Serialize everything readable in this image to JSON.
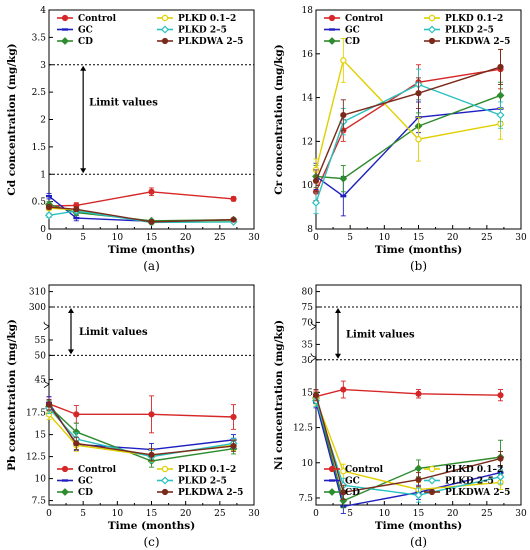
{
  "legend_order": [
    "Control",
    "GC",
    "CD",
    "PLKD 0.1–2",
    "PLKD 2–5",
    "PLKDWA 2–5"
  ],
  "series_colors": {
    "Control": "#d62728",
    "GC": "#1f1fbf",
    "CD": "#2e8b2e",
    "PLKD 0.1–2": "#e0d000",
    "PLKD 2–5": "#2bc0c0",
    "PLKDWA 2–5": "#7a2a1a"
  },
  "chart_data": [
    {
      "type": "line",
      "panel_label": "(a)",
      "xlabel": "Time (months)",
      "ylabel": "Cd concentration (mg/kg)",
      "xlim": [
        0,
        30
      ],
      "ylim": [
        0,
        4
      ],
      "xticks": [
        0,
        5,
        10,
        15,
        20,
        25,
        30
      ],
      "yticks": [
        0,
        0.5,
        1,
        1.5,
        2,
        2.5,
        3,
        3.5,
        4
      ],
      "ytick_labels": [
        "0",
        "0.5",
        "1",
        "1.5",
        "2",
        "2.5",
        "3",
        "3.5",
        "4"
      ],
      "x": [
        0,
        4,
        15,
        27
      ],
      "limit_lines": [
        1,
        3
      ],
      "annotation": "Limit values",
      "series": [
        {
          "name": "Control",
          "values": [
            0.42,
            0.43,
            0.68,
            0.55
          ],
          "err": [
            0.05,
            0.05,
            0.07,
            0.04
          ]
        },
        {
          "name": "GC",
          "values": [
            0.6,
            0.2,
            0.14,
            0.16
          ],
          "err": [
            0.05,
            0.05,
            0.02,
            0.02
          ]
        },
        {
          "name": "CD",
          "values": [
            0.45,
            0.3,
            0.15,
            0.17
          ],
          "err": [
            0.05,
            0.05,
            0.02,
            0.02
          ]
        },
        {
          "name": "PLKD 0.1–2",
          "values": [
            0.38,
            0.35,
            0.12,
            0.14
          ],
          "err": [
            0.04,
            0.04,
            0.02,
            0.02
          ]
        },
        {
          "name": "PLKD 2–5",
          "values": [
            0.25,
            0.33,
            0.12,
            0.13
          ],
          "err": [
            0.04,
            0.04,
            0.02,
            0.02
          ]
        },
        {
          "name": "PLKDWA 2–5",
          "values": [
            0.4,
            0.36,
            0.13,
            0.17
          ],
          "err": [
            0.04,
            0.04,
            0.02,
            0.02
          ]
        }
      ]
    },
    {
      "type": "line",
      "panel_label": "(b)",
      "xlabel": "Time (months)",
      "ylabel": "Cr concentration (mg/kg)",
      "xlim": [
        0,
        30
      ],
      "ylim": [
        8,
        18
      ],
      "xticks": [
        0,
        5,
        10,
        15,
        20,
        25,
        30
      ],
      "yticks": [
        8,
        10,
        12,
        14,
        16,
        18
      ],
      "ytick_labels": [
        "8",
        "10",
        "12",
        "14",
        "16",
        "18"
      ],
      "x": [
        0,
        4,
        15,
        27
      ],
      "series": [
        {
          "name": "Control",
          "values": [
            9.7,
            12.5,
            14.7,
            15.3
          ],
          "err": [
            0.4,
            0.5,
            0.8,
            0.9
          ]
        },
        {
          "name": "GC",
          "values": [
            10.4,
            9.5,
            13.1,
            13.5
          ],
          "err": [
            0.6,
            0.9,
            0.7,
            0.6
          ]
        },
        {
          "name": "CD",
          "values": [
            10.4,
            10.3,
            12.7,
            14.1
          ],
          "err": [
            0.5,
            0.6,
            0.6,
            0.6
          ]
        },
        {
          "name": "PLKD 0.1–2",
          "values": [
            10.7,
            15.7,
            12.1,
            12.8
          ],
          "err": [
            0.5,
            1.0,
            1.0,
            0.7
          ]
        },
        {
          "name": "PLKD 2–5",
          "values": [
            9.2,
            12.9,
            14.6,
            13.2
          ],
          "err": [
            0.5,
            0.6,
            0.7,
            0.6
          ]
        },
        {
          "name": "PLKDWA 2–5",
          "values": [
            10.2,
            13.2,
            14.2,
            15.4
          ],
          "err": [
            0.5,
            0.7,
            0.7,
            0.8
          ]
        }
      ]
    },
    {
      "type": "line",
      "panel_label": "(c)",
      "xlabel": "Time (months)",
      "ylabel": "Pb concentration (mg/kg)",
      "xlim": [
        0,
        30
      ],
      "ylim": [
        7,
        20
      ],
      "xticks": [
        0,
        5,
        10,
        15,
        20,
        25,
        30
      ],
      "yticks": [
        7.5,
        10,
        12.5,
        15,
        17.5
      ],
      "ytick_labels": [
        "7.5",
        "10",
        "12.5",
        "15",
        "17.5"
      ],
      "upper_ticks": [
        {
          "label": "310",
          "frac": 0.03
        },
        {
          "label": "300",
          "frac": 0.1
        },
        {
          "label": "55",
          "frac": 0.25
        },
        {
          "label": "50",
          "frac": 0.32
        },
        {
          "label": "45",
          "frac": 0.43
        }
      ],
      "limit_lines_upper": [
        0.1,
        0.32
      ],
      "annotation": "Limit values",
      "x": [
        0,
        4,
        15,
        27
      ],
      "series": [
        {
          "name": "Control",
          "values": [
            18.5,
            17.3,
            17.3,
            17.0
          ],
          "err": [
            0.8,
            1.0,
            2.1,
            1.4
          ]
        },
        {
          "name": "GC",
          "values": [
            18.6,
            13.9,
            13.3,
            14.4
          ],
          "err": [
            0.7,
            0.7,
            0.7,
            0.6
          ]
        },
        {
          "name": "CD",
          "values": [
            18.2,
            15.3,
            12.0,
            13.4
          ],
          "err": [
            0.7,
            1.0,
            0.7,
            0.6
          ]
        },
        {
          "name": "PLKD 0.1–2",
          "values": [
            17.3,
            13.8,
            12.6,
            13.8
          ],
          "err": [
            0.6,
            0.7,
            0.7,
            0.6
          ]
        },
        {
          "name": "PLKD 2–5",
          "values": [
            18.0,
            14.5,
            12.5,
            14.0
          ],
          "err": [
            0.6,
            0.7,
            0.7,
            0.6
          ]
        },
        {
          "name": "PLKDWA 2–5",
          "values": [
            18.4,
            14.0,
            12.7,
            13.7
          ],
          "err": [
            0.6,
            0.7,
            0.7,
            0.6
          ]
        }
      ]
    },
    {
      "type": "line",
      "panel_label": "(d)",
      "xlabel": "Time (months)",
      "ylabel": "Ni concentration (mg/kg)",
      "xlim": [
        0,
        30
      ],
      "ylim": [
        7,
        17
      ],
      "xticks": [
        0,
        5,
        10,
        15,
        20,
        25,
        30
      ],
      "yticks": [
        7.5,
        10,
        12.5,
        15
      ],
      "ytick_labels": [
        "7.5",
        "10",
        "12.5",
        "15"
      ],
      "upper_ticks": [
        {
          "label": "80",
          "frac": 0.03
        },
        {
          "label": "75",
          "frac": 0.1
        },
        {
          "label": "70",
          "frac": 0.17
        },
        {
          "label": "35",
          "frac": 0.27
        },
        {
          "label": "30",
          "frac": 0.34
        }
      ],
      "limit_lines_upper": [
        0.1,
        0.34
      ],
      "annotation": "Limit values",
      "x": [
        0,
        4,
        15,
        27
      ],
      "series": [
        {
          "name": "Control",
          "values": [
            14.7,
            15.2,
            14.9,
            14.8
          ],
          "err": [
            0.4,
            0.6,
            0.3,
            0.4
          ]
        },
        {
          "name": "GC",
          "values": [
            14.3,
            6.9,
            7.9,
            9.3
          ],
          "err": [
            0.4,
            0.5,
            0.5,
            0.4
          ]
        },
        {
          "name": "CD",
          "values": [
            14.6,
            7.3,
            9.6,
            10.4
          ],
          "err": [
            0.4,
            0.5,
            0.6,
            1.2
          ]
        },
        {
          "name": "PLKD 0.1–2",
          "values": [
            14.5,
            9.4,
            8.1,
            8.6
          ],
          "err": [
            0.4,
            0.5,
            0.5,
            0.5
          ]
        },
        {
          "name": "PLKD 2–5",
          "values": [
            14.4,
            8.4,
            7.7,
            9.0
          ],
          "err": [
            0.4,
            0.5,
            0.5,
            0.5
          ]
        },
        {
          "name": "PLKDWA 2–5",
          "values": [
            14.8,
            7.9,
            8.8,
            10.3
          ],
          "err": [
            0.4,
            0.5,
            0.5,
            0.5
          ]
        }
      ]
    }
  ]
}
